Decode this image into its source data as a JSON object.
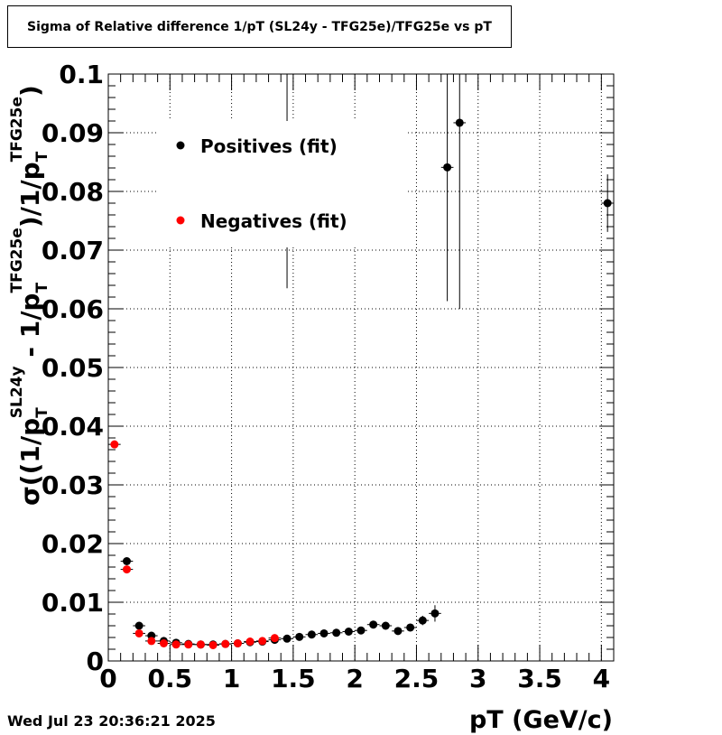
{
  "title": "Sigma of Relative difference 1/pT (SL24y - TFG25e)/TFG25e vs pT",
  "timestamp": "Wed Jul 23 20:36:21 2025",
  "chart_data": {
    "type": "scatter",
    "title": "Sigma of Relative difference 1/pT (SL24y - TFG25e)/TFG25e vs pT",
    "xlabel": "pT (GeV/c)",
    "ylabel": {
      "sigma": "σ",
      "part1": "((1/p",
      "sub1": "T",
      "sup1": "SL24y",
      "part2": " - 1/p",
      "sub2": "T",
      "sup2": "TFG25e",
      "part3": ")/1/p",
      "sub3": "T",
      "sup3": "TFG25e",
      "part4": ")"
    },
    "xlim": [
      0,
      4.1
    ],
    "ylim": [
      0,
      0.1
    ],
    "x_ticks": [
      0,
      0.5,
      1,
      1.5,
      2,
      2.5,
      3,
      3.5,
      4
    ],
    "x_tick_labels": [
      "0",
      "0.5",
      "1",
      "1.5",
      "2",
      "2.5",
      "3",
      "3.5",
      "4"
    ],
    "y_ticks": [
      0,
      0.01,
      0.02,
      0.03,
      0.04,
      0.05,
      0.06,
      0.07,
      0.08,
      0.09,
      0.1
    ],
    "y_tick_labels": [
      "0",
      "0.01",
      "0.02",
      "0.03",
      "0.04",
      "0.05",
      "0.06",
      "0.07",
      "0.08",
      "0.09",
      "0.1"
    ],
    "grid": true,
    "legend_position": "top-left",
    "series": [
      {
        "name": "Positives (fit)",
        "color": "#000000",
        "points": [
          {
            "x": 0.15,
            "y": 0.017,
            "yerr": 0.0006
          },
          {
            "x": 0.25,
            "y": 0.006,
            "yerr": 0.0004
          },
          {
            "x": 0.35,
            "y": 0.0043,
            "yerr": 0.0003
          },
          {
            "x": 0.45,
            "y": 0.0034,
            "yerr": 0.0003
          },
          {
            "x": 0.55,
            "y": 0.0031,
            "yerr": 0.0002
          },
          {
            "x": 0.65,
            "y": 0.0029,
            "yerr": 0.0002
          },
          {
            "x": 0.75,
            "y": 0.0028,
            "yerr": 0.0002
          },
          {
            "x": 0.85,
            "y": 0.0028,
            "yerr": 0.0002
          },
          {
            "x": 0.95,
            "y": 0.0029,
            "yerr": 0.0002
          },
          {
            "x": 1.05,
            "y": 0.003,
            "yerr": 0.0002
          },
          {
            "x": 1.15,
            "y": 0.0032,
            "yerr": 0.0002
          },
          {
            "x": 1.25,
            "y": 0.0033,
            "yerr": 0.0002
          },
          {
            "x": 1.35,
            "y": 0.0036,
            "yerr": 0.0003
          },
          {
            "x": 1.45,
            "y": 0.0038,
            "yerr": 0.0003
          },
          {
            "x": 1.55,
            "y": 0.0041,
            "yerr": 0.0003
          },
          {
            "x": 1.65,
            "y": 0.0045,
            "yerr": 0.0003
          },
          {
            "x": 1.75,
            "y": 0.0047,
            "yerr": 0.0003
          },
          {
            "x": 1.85,
            "y": 0.0048,
            "yerr": 0.0003
          },
          {
            "x": 1.95,
            "y": 0.005,
            "yerr": 0.0003
          },
          {
            "x": 2.05,
            "y": 0.0052,
            "yerr": 0.0004
          },
          {
            "x": 2.15,
            "y": 0.0062,
            "yerr": 0.0005
          },
          {
            "x": 2.25,
            "y": 0.006,
            "yerr": 0.0005
          },
          {
            "x": 2.35,
            "y": 0.0051,
            "yerr": 0.0005
          },
          {
            "x": 2.45,
            "y": 0.0057,
            "yerr": 0.0006
          },
          {
            "x": 2.55,
            "y": 0.0069,
            "yerr": 0.0008
          },
          {
            "x": 2.65,
            "y": 0.0081,
            "yerr": 0.0014
          },
          {
            "x": 2.75,
            "y": 0.0841,
            "yerr": 0.0228
          },
          {
            "x": 2.85,
            "y": 0.0917,
            "yerr": 0.0317
          },
          {
            "x": 4.05,
            "y": 0.078,
            "yerr": 0.0049
          }
        ]
      },
      {
        "name": "Negatives (fit)",
        "color": "#ff0000",
        "points": [
          {
            "x": 0.05,
            "y": 0.0369,
            "yerr": 0.0006
          },
          {
            "x": 0.15,
            "y": 0.0156,
            "yerr": 0.0005
          },
          {
            "x": 0.25,
            "y": 0.0047,
            "yerr": 0.0003
          },
          {
            "x": 0.35,
            "y": 0.0034,
            "yerr": 0.0002
          },
          {
            "x": 0.45,
            "y": 0.003,
            "yerr": 0.0002
          },
          {
            "x": 0.55,
            "y": 0.0028,
            "yerr": 0.0002
          },
          {
            "x": 0.65,
            "y": 0.0028,
            "yerr": 0.0002
          },
          {
            "x": 0.75,
            "y": 0.0028,
            "yerr": 0.0002
          },
          {
            "x": 0.85,
            "y": 0.0027,
            "yerr": 0.0002
          },
          {
            "x": 0.95,
            "y": 0.0029,
            "yerr": 0.0002
          },
          {
            "x": 1.05,
            "y": 0.003,
            "yerr": 0.0002
          },
          {
            "x": 1.15,
            "y": 0.0033,
            "yerr": 0.0002
          },
          {
            "x": 1.25,
            "y": 0.0034,
            "yerr": 0.0002
          },
          {
            "x": 1.35,
            "y": 0.0039,
            "yerr": 0.0003
          }
        ]
      },
      {
        "name": "",
        "color": "#000000",
        "points": [
          {
            "x": 1.45,
            "y": 0.0822,
            "yerr": 0.0187
          }
        ]
      }
    ]
  }
}
